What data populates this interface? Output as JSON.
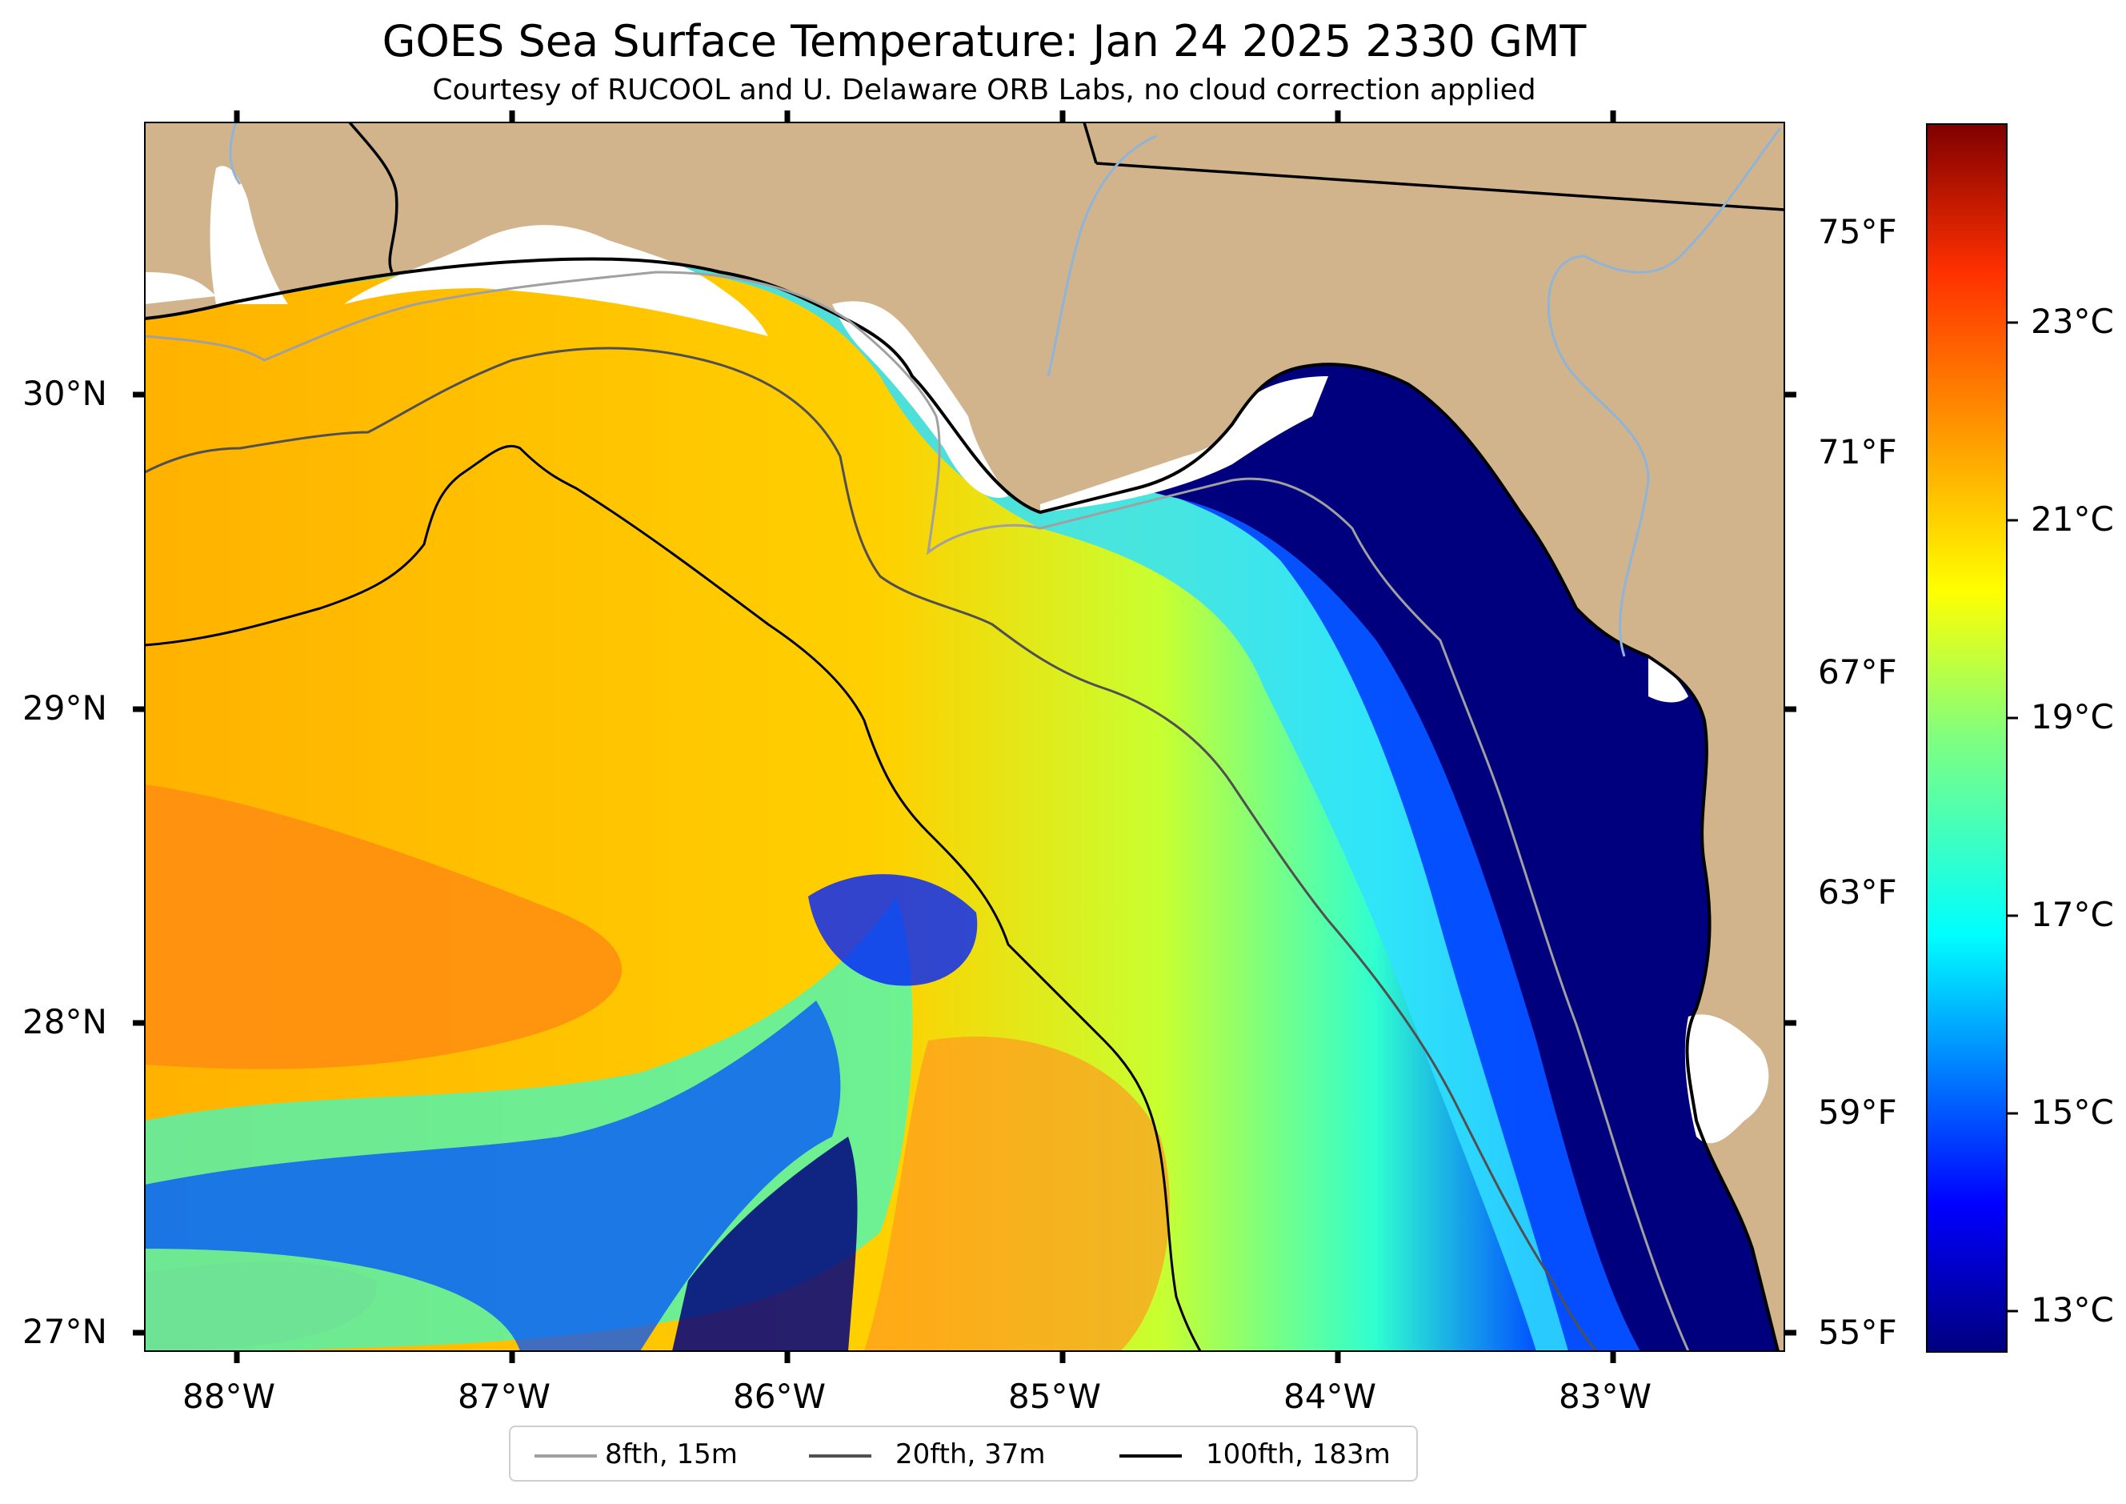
{
  "title": "GOES Sea Surface Temperature: Jan 24 2025 2330 GMT",
  "subtitle": "Courtesy of RUCOOL and U. Delaware ORB Labs, no cloud correction applied",
  "map": {
    "latitude_labels": [
      "30°N",
      "29°N",
      "28°N",
      "27°N"
    ],
    "longitude_labels": [
      "88°W",
      "87°W",
      "86°W",
      "85°W",
      "84°W",
      "83°W"
    ],
    "fahrenheit_labels": [
      "75°F",
      "71°F",
      "67°F",
      "63°F",
      "59°F",
      "55°F"
    ],
    "colors": {
      "land": "#d2b48c",
      "cold": "#00007f",
      "warm": "#ff8a00",
      "coastline": "#000000",
      "rivers": "#8fb4d8"
    }
  },
  "colorbar": {
    "labels": [
      "23°C",
      "21°C",
      "19°C",
      "17°C",
      "15°C",
      "13°C"
    ],
    "colormap": "jet"
  },
  "legend": {
    "items": [
      {
        "label": "8fth, 15m",
        "color": "#a0a0a0"
      },
      {
        "label": "20fth, 37m",
        "color": "#505050"
      },
      {
        "label": "100fth, 183m",
        "color": "#000000"
      }
    ]
  }
}
